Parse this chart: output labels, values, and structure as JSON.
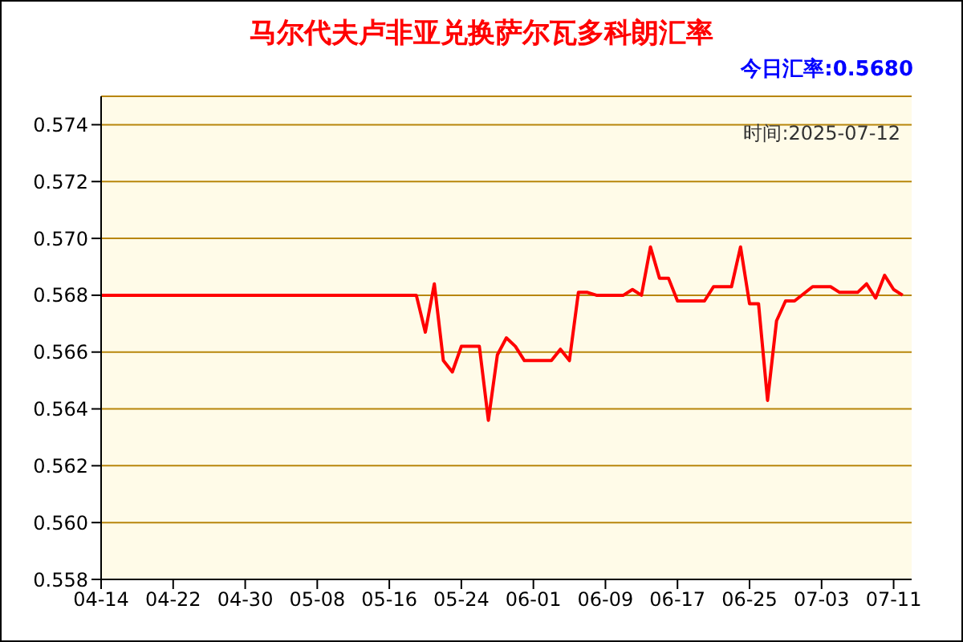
{
  "chart_data": {
    "type": "line",
    "title": "马尔代夫卢非亚兑换萨尔瓦多科朗汇率",
    "annotations": [
      "今日汇率:0.5680",
      "时间:2025-07-12"
    ],
    "x": [
      "2025-04-14",
      "2025-05-19",
      "2025-05-20",
      "2025-05-21",
      "2025-05-22",
      "2025-05-23",
      "2025-05-24",
      "2025-05-26",
      "2025-05-27",
      "2025-05-28",
      "2025-05-29",
      "2025-05-30",
      "2025-05-31",
      "2025-06-03",
      "2025-06-04",
      "2025-06-05",
      "2025-06-06",
      "2025-06-07",
      "2025-06-08",
      "2025-06-11",
      "2025-06-12",
      "2025-06-13",
      "2025-06-14",
      "2025-06-15",
      "2025-06-16",
      "2025-06-17",
      "2025-06-20",
      "2025-06-21",
      "2025-06-23",
      "2025-06-24",
      "2025-06-25",
      "2025-06-26",
      "2025-06-27",
      "2025-06-28",
      "2025-06-29",
      "2025-06-30",
      "2025-07-02",
      "2025-07-04",
      "2025-07-05",
      "2025-07-07",
      "2025-07-08",
      "2025-07-09",
      "2025-07-10",
      "2025-07-11",
      "2025-07-12"
    ],
    "series": [
      {
        "color": "#ff0000",
        "values": [
          0.568,
          0.568,
          0.5667,
          0.5684,
          0.5657,
          0.5653,
          0.5662,
          0.5662,
          0.5636,
          0.5659,
          0.5665,
          0.5662,
          0.5657,
          0.5657,
          0.5661,
          0.5657,
          0.5681,
          0.5681,
          0.568,
          0.568,
          0.5682,
          0.568,
          0.5697,
          0.5686,
          0.5686,
          0.5678,
          0.5678,
          0.5683,
          0.5683,
          0.5697,
          0.5677,
          0.5677,
          0.5643,
          0.5671,
          0.5678,
          0.5678,
          0.5683,
          0.5683,
          0.5681,
          0.5681,
          0.5684,
          0.5679,
          0.5687,
          0.5682,
          0.568
        ]
      }
    ],
    "xlim": [
      "2025-04-14",
      "2025-07-13"
    ],
    "xticks": [
      {
        "value": "2025-04-14",
        "label": "04-14"
      },
      {
        "value": "2025-04-22",
        "label": "04-22"
      },
      {
        "value": "2025-04-30",
        "label": "04-30"
      },
      {
        "value": "2025-05-08",
        "label": "05-08"
      },
      {
        "value": "2025-05-16",
        "label": "05-16"
      },
      {
        "value": "2025-05-24",
        "label": "05-24"
      },
      {
        "value": "2025-06-01",
        "label": "06-01"
      },
      {
        "value": "2025-06-09",
        "label": "06-09"
      },
      {
        "value": "2025-06-17",
        "label": "06-17"
      },
      {
        "value": "2025-06-25",
        "label": "06-25"
      },
      {
        "value": "2025-07-03",
        "label": "07-03"
      },
      {
        "value": "2025-07-11",
        "label": "07-11"
      }
    ],
    "ylim": [
      0.558,
      0.575
    ],
    "yticks": [
      0.558,
      {
        "value": 0.56,
        "label": "0.560"
      },
      0.562,
      0.564,
      0.566,
      0.568,
      {
        "value": 0.57,
        "label": "0.570"
      },
      0.572,
      0.574
    ],
    "grid": "y",
    "legend": false,
    "marker": "none",
    "line_style": "solid"
  }
}
